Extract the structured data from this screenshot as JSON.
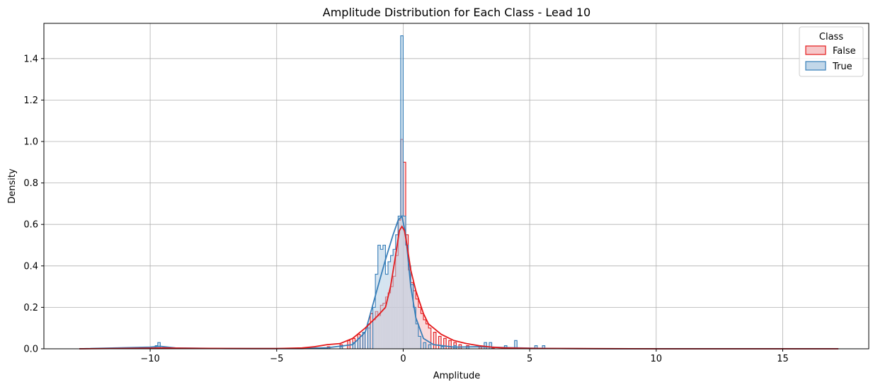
{
  "chart_data": {
    "type": "histogram-kde",
    "title": "Amplitude Distribution for Each Class - Lead 10",
    "xlabel": "Amplitude",
    "ylabel": "Density",
    "xlim": [
      -14.2,
      18.4
    ],
    "ylim": [
      0,
      1.57
    ],
    "xticks": [
      -10,
      -5,
      0,
      5,
      10,
      15
    ],
    "yticks": [
      0.0,
      0.2,
      0.4,
      0.6,
      0.8,
      1.0,
      1.2,
      1.4
    ],
    "grid": true,
    "legend": {
      "title": "Class",
      "position": "top-right"
    },
    "bin_width": 0.1,
    "series": [
      {
        "name": "False",
        "color": "#e41a1c",
        "fill": "#f4b9bb",
        "hist": [
          [
            -4.0,
            0.0
          ],
          [
            -3.5,
            0.003
          ],
          [
            -3.0,
            0.01
          ],
          [
            -2.5,
            0.02
          ],
          [
            -2.2,
            0.04
          ],
          [
            -2.0,
            0.05
          ],
          [
            -1.8,
            0.07
          ],
          [
            -1.6,
            0.08
          ],
          [
            -1.4,
            0.1
          ],
          [
            -1.3,
            0.17
          ],
          [
            -1.2,
            0.14
          ],
          [
            -1.1,
            0.18
          ],
          [
            -1.0,
            0.16
          ],
          [
            -0.9,
            0.21
          ],
          [
            -0.8,
            0.22
          ],
          [
            -0.7,
            0.25
          ],
          [
            -0.6,
            0.27
          ],
          [
            -0.5,
            0.3
          ],
          [
            -0.4,
            0.35
          ],
          [
            -0.3,
            0.45
          ],
          [
            -0.2,
            0.62
          ],
          [
            -0.1,
            1.01
          ],
          [
            0.0,
            0.9
          ],
          [
            0.1,
            0.55
          ],
          [
            0.2,
            0.38
          ],
          [
            0.3,
            0.32
          ],
          [
            0.4,
            0.28
          ],
          [
            0.5,
            0.24
          ],
          [
            0.6,
            0.2
          ],
          [
            0.7,
            0.17
          ],
          [
            0.8,
            0.14
          ],
          [
            0.9,
            0.12
          ],
          [
            1.0,
            0.1
          ],
          [
            1.2,
            0.08
          ],
          [
            1.4,
            0.06
          ],
          [
            1.6,
            0.05
          ],
          [
            1.8,
            0.04
          ],
          [
            2.0,
            0.03
          ],
          [
            2.2,
            0.02
          ],
          [
            2.5,
            0.015
          ],
          [
            3.0,
            0.01
          ],
          [
            3.5,
            0.004
          ]
        ],
        "kde": [
          [
            -12.8,
            0.0
          ],
          [
            -10.0,
            0.003
          ],
          [
            -9.5,
            0.004
          ],
          [
            -8.0,
            0.002
          ],
          [
            -6.0,
            0.001
          ],
          [
            -5.0,
            0.001
          ],
          [
            -4.0,
            0.004
          ],
          [
            -3.5,
            0.01
          ],
          [
            -3.0,
            0.02
          ],
          [
            -2.5,
            0.025
          ],
          [
            -2.0,
            0.05
          ],
          [
            -1.5,
            0.1
          ],
          [
            -1.0,
            0.16
          ],
          [
            -0.7,
            0.2
          ],
          [
            -0.5,
            0.3
          ],
          [
            -0.3,
            0.45
          ],
          [
            -0.15,
            0.57
          ],
          [
            -0.05,
            0.59
          ],
          [
            0.05,
            0.57
          ],
          [
            0.15,
            0.5
          ],
          [
            0.3,
            0.38
          ],
          [
            0.5,
            0.28
          ],
          [
            0.8,
            0.17
          ],
          [
            1.0,
            0.12
          ],
          [
            1.5,
            0.07
          ],
          [
            2.0,
            0.04
          ],
          [
            2.5,
            0.025
          ],
          [
            3.0,
            0.015
          ],
          [
            3.5,
            0.008
          ],
          [
            4.0,
            0.004
          ],
          [
            5.0,
            0.002
          ],
          [
            7.0,
            0.001
          ],
          [
            10.0,
            0.0
          ],
          [
            17.2,
            0.0
          ]
        ]
      },
      {
        "name": "True",
        "color": "#377eb8",
        "fill": "#b3cde3",
        "hist": [
          [
            -9.8,
            0.015
          ],
          [
            -9.7,
            0.03
          ],
          [
            -9.6,
            0.005
          ],
          [
            -3.0,
            0.005
          ],
          [
            -2.5,
            0.01
          ],
          [
            -2.0,
            0.03
          ],
          [
            -1.8,
            0.05
          ],
          [
            -1.6,
            0.08
          ],
          [
            -1.4,
            0.12
          ],
          [
            -1.2,
            0.2
          ],
          [
            -1.1,
            0.36
          ],
          [
            -1.0,
            0.5
          ],
          [
            -0.9,
            0.48
          ],
          [
            -0.8,
            0.5
          ],
          [
            -0.7,
            0.36
          ],
          [
            -0.6,
            0.42
          ],
          [
            -0.5,
            0.45
          ],
          [
            -0.4,
            0.48
          ],
          [
            -0.3,
            0.55
          ],
          [
            -0.2,
            0.64
          ],
          [
            -0.1,
            1.51
          ],
          [
            0.0,
            0.64
          ],
          [
            0.1,
            0.5
          ],
          [
            0.2,
            0.4
          ],
          [
            0.3,
            0.31
          ],
          [
            0.4,
            0.2
          ],
          [
            0.5,
            0.12
          ],
          [
            0.6,
            0.06
          ],
          [
            0.8,
            0.03
          ],
          [
            1.0,
            0.02
          ],
          [
            1.5,
            0.01
          ],
          [
            2.0,
            0.015
          ],
          [
            2.5,
            0.01
          ],
          [
            3.2,
            0.03
          ],
          [
            3.4,
            0.03
          ],
          [
            4.0,
            0.015
          ],
          [
            4.4,
            0.04
          ],
          [
            5.2,
            0.015
          ],
          [
            5.5,
            0.015
          ]
        ],
        "kde": [
          [
            -12.8,
            0.0
          ],
          [
            -10.0,
            0.008
          ],
          [
            -9.6,
            0.012
          ],
          [
            -9.0,
            0.004
          ],
          [
            -7.0,
            0.001
          ],
          [
            -4.0,
            0.001
          ],
          [
            -3.0,
            0.005
          ],
          [
            -2.0,
            0.02
          ],
          [
            -1.5,
            0.08
          ],
          [
            -1.0,
            0.3
          ],
          [
            -0.7,
            0.43
          ],
          [
            -0.4,
            0.55
          ],
          [
            -0.2,
            0.62
          ],
          [
            -0.05,
            0.64
          ],
          [
            0.1,
            0.55
          ],
          [
            0.3,
            0.3
          ],
          [
            0.5,
            0.15
          ],
          [
            0.8,
            0.05
          ],
          [
            1.2,
            0.02
          ],
          [
            2.0,
            0.008
          ],
          [
            3.0,
            0.01
          ],
          [
            4.0,
            0.006
          ],
          [
            5.5,
            0.002
          ],
          [
            8.0,
            0.0
          ],
          [
            17.2,
            0.0
          ]
        ]
      }
    ]
  }
}
